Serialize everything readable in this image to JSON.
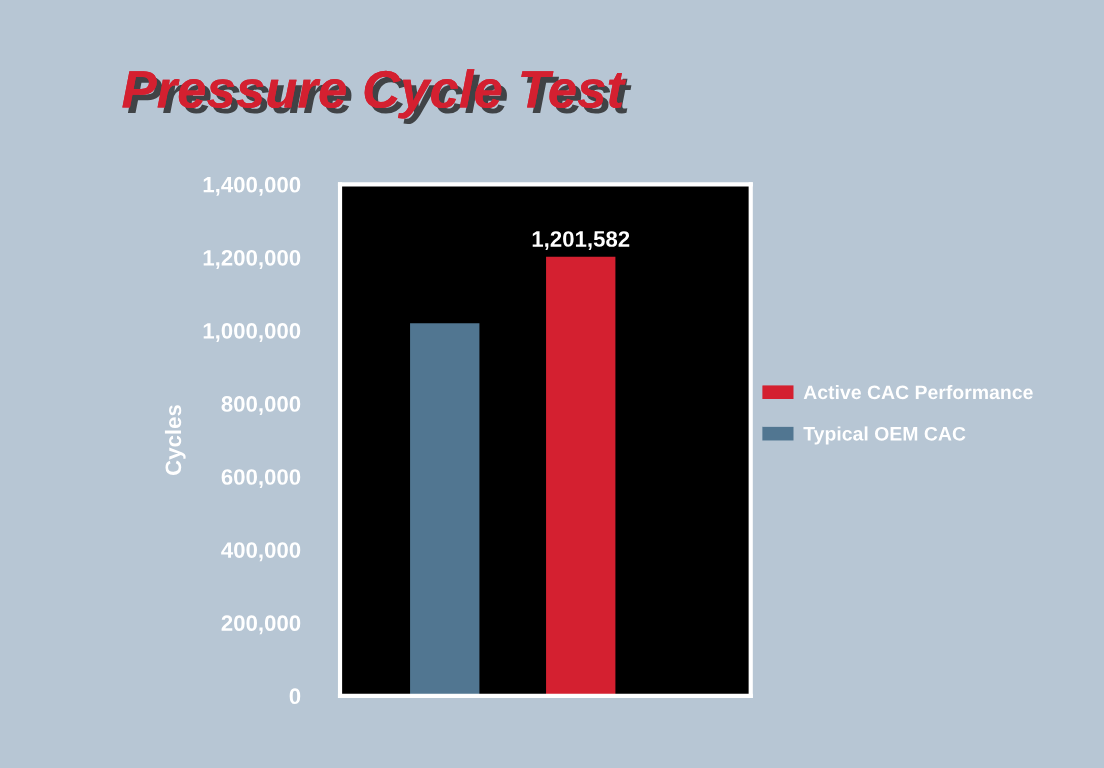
{
  "chart_data": {
    "type": "bar",
    "title": "Pressure Cycle Test",
    "ylabel": "Cycles",
    "categories": [
      null,
      null
    ],
    "series": [
      {
        "name": "Active CAC Performance",
        "color": "#d42030",
        "values": [
          null,
          1201582
        ],
        "value_labels": [
          null,
          "1,201,582"
        ]
      },
      {
        "name": "Typical OEM CAC",
        "color": "#517691",
        "values": [
          1020000,
          null
        ]
      }
    ],
    "ylim": [
      0,
      1400000
    ],
    "yticks": [
      0,
      {
        "value": 200000,
        "label": "200,000"
      },
      {
        "value": 400000,
        "label": "400,000"
      },
      {
        "value": 600000,
        "label": "600,000"
      },
      {
        "value": 800000,
        "label": "800,000"
      },
      {
        "value": 1000000,
        "label": "1,000,000"
      },
      {
        "value": 1200000,
        "label": "1,200,000"
      },
      {
        "value": 1400000,
        "label": "1,400,000"
      }
    ],
    "grid": false,
    "legend": "right",
    "tick_labels": "y"
  }
}
